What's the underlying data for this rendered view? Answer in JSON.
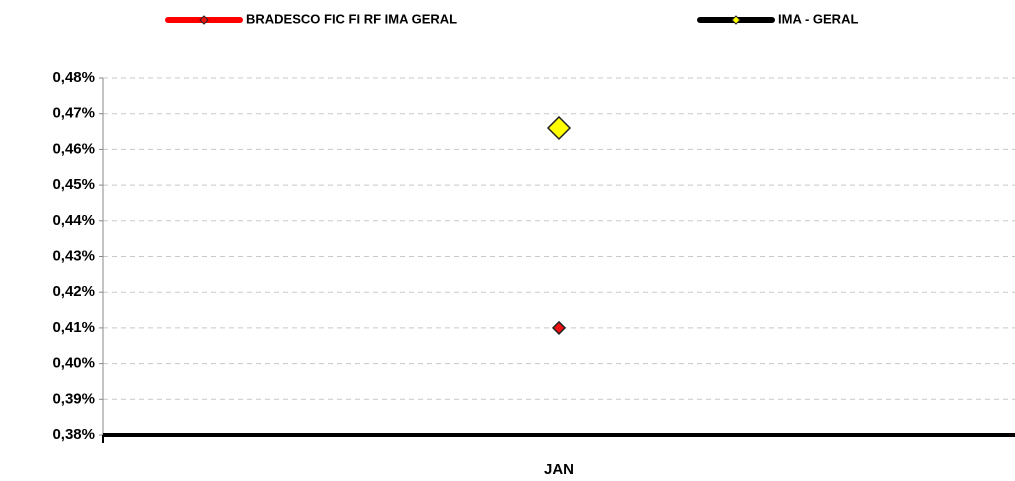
{
  "chart_data": {
    "type": "line",
    "categories": [
      "JAN"
    ],
    "series": [
      {
        "name": "BRADESCO FIC FI RF IMA GERAL",
        "color": "#ff0000",
        "marker_color": "#ee1111",
        "values": [
          0.41
        ]
      },
      {
        "name": "IMA - GERAL",
        "color": "#000000",
        "marker_color": "#ffff00",
        "values": [
          0.466
        ]
      }
    ],
    "ylim": [
      0.38,
      0.48
    ],
    "yticks": [
      {
        "value": 0.38,
        "label": "0,38%"
      },
      {
        "value": 0.39,
        "label": "0,39%"
      },
      {
        "value": 0.4,
        "label": "0,40%"
      },
      {
        "value": 0.41,
        "label": "0,41%"
      },
      {
        "value": 0.42,
        "label": "0,42%"
      },
      {
        "value": 0.43,
        "label": "0,43%"
      },
      {
        "value": 0.44,
        "label": "0,44%"
      },
      {
        "value": 0.45,
        "label": "0,45%"
      },
      {
        "value": 0.46,
        "label": "0,46%"
      },
      {
        "value": 0.47,
        "label": "0,47%"
      },
      {
        "value": 0.48,
        "label": "0,48%"
      }
    ],
    "grid": true
  }
}
